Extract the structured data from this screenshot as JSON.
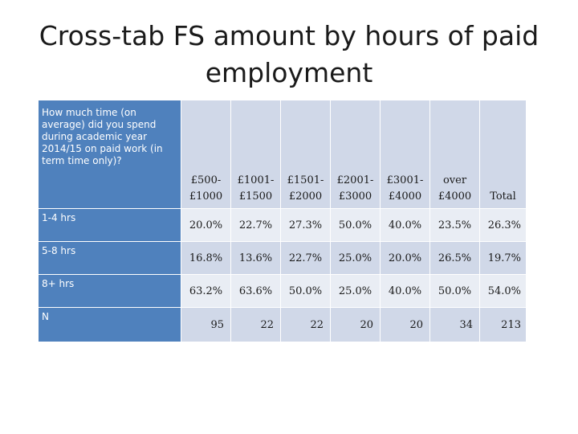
{
  "slide": {
    "title_line1": "Cross-tab FS amount by hours of paid",
    "title_line2": "employment"
  },
  "chart_data": {
    "type": "table",
    "question": "How much time (on average) did you spend during academic year 2014/15 on paid work (in term time only)?",
    "columns": [
      {
        "line1": "£500-",
        "line2": "£1000"
      },
      {
        "line1": "£1001-",
        "line2": "£1500"
      },
      {
        "line1": "£1501-",
        "line2": "£2000"
      },
      {
        "line1": "£2001-",
        "line2": "£3000"
      },
      {
        "line1": "£3001-",
        "line2": "£4000"
      },
      {
        "line1": "over",
        "line2": "£4000"
      },
      {
        "line1": "",
        "line2": "Total"
      }
    ],
    "rows": [
      {
        "label": "1-4 hrs",
        "values": [
          "20.0%",
          "22.7%",
          "27.3%",
          "50.0%",
          "40.0%",
          "23.5%",
          "26.3%"
        ]
      },
      {
        "label": "5-8 hrs",
        "values": [
          "16.8%",
          "13.6%",
          "22.7%",
          "25.0%",
          "20.0%",
          "26.5%",
          "19.7%"
        ]
      },
      {
        "label": "8+ hrs",
        "values": [
          "63.2%",
          "63.6%",
          "50.0%",
          "25.0%",
          "40.0%",
          "50.0%",
          "54.0%"
        ]
      },
      {
        "label": "N",
        "values": [
          "95",
          "22",
          "22",
          "20",
          "20",
          "34",
          "213"
        ]
      }
    ]
  }
}
